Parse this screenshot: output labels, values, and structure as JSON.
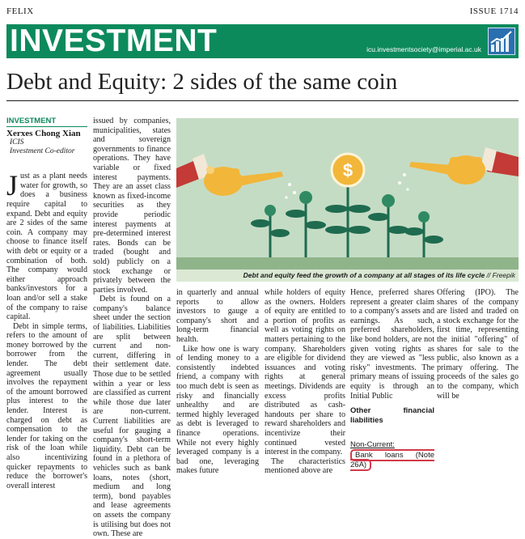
{
  "header": {
    "publication": "FELIX",
    "issue": "ISSUE 1714"
  },
  "banner": {
    "section": "INVESTMENT",
    "email": "icu.investmentsociety@imperial.ac.uk",
    "logo_icon": "chart-growth-icon"
  },
  "article": {
    "title": "Debt and Equity: 2 sides of the same coin",
    "section_label": "INVESTMENT",
    "author": "Xerxes Chong Xian",
    "author_org": "ICIS",
    "author_role": "Investment Co-editor",
    "col1_dropcap": "J",
    "col1_p1": "ust as a plant needs water for growth, so does a business require capital to expand. Debt and equity are 2 sides of the same coin. A company may choose to finance itself with debt or equity or a combination of both. The company would either approach banks/investors for a loan and/or sell a stake of the company to raise capital.",
    "col1_p2": "Debt in simple terms, refers to the amount of money borrowed by the borrower from the lender. The debt agreement usually involves the repayment of the amount borrowed plus interest to the lender. Interest is charged on debt as compensation to the lender for taking on the risk of the loan while also incentivizing quicker repayments to reduce the borrower's overall interest",
    "col2_p1": "issued by companies, municipalities, states and sovereign governments to finance operations. They have variable or fixed interest payments. They are an asset class known as fixed-income securities as they provide periodic interest payments at pre-determined interest rates. Bonds can be traded (bought and sold) publicly on a stock exchange or privately between the parties involved.",
    "col2_p2": "Debt is found on a company's balance sheet under the section of liabilities. Liabilities are split between current and non-current, differing in their settlement date. Those due to be settled within a year or less are classified as current while those due later are non-current. Current liabilities are useful for gauging a company's short-term liquidity. Debt can be found in a plethora of vehicles such as bank loans, notes (short, medium and long term), bond payables and lease agreements on assets the company is utilising but does not own. These are",
    "col3_p1": "in quarterly and annual reports to allow investors to gauge a company's short and long-term financial health.",
    "col3_p2": "Like how one is wary of lending money to a consistently indebted friend, a company with too much debt is seen as risky and financially unhealthy and are termed highly leveraged as debt is leveraged to finance operations. While not every highly leveraged company is a bad one, leveraging makes future",
    "col4_p1": "while holders of equity as the owners. Holders of equity are entitled to a portion of profits as well as voting rights on matters pertaining to the company. Shareholders are eligible for dividend issuances and voting rights at general meetings. Dividends are excess profits distributed as cash-handouts per share to reward shareholders and incentivize their continued vested interest in the company.",
    "col4_p2": "The characteristics mentioned above are",
    "col5_p1": "Hence, preferred shares represent a greater claim to a company's assets and earnings. As such, preferred shareholders, like bond holders, are not given voting rights as they are viewed as \"less risky\" investments. The primary means of issuing equity is through an Initial Public",
    "col5_subhead": "Other financial liabilities",
    "col5_noncurrent": "Non-Current:",
    "col5_bank": "Bank loans (Note 26A)",
    "col6_p1": "Offering (IPO). The shares of the company are listed and traded on a stock exchange for the first time, representing the initial \"offering\" of shares for sale to the public, also known as a primary offering. The proceeds of the sales go to the company, which will be"
  },
  "figure": {
    "caption": "Debt and equity feed the growth of a company at all stages of its life cycle",
    "credit": "// Freepik",
    "coin_symbol": "$",
    "colors": {
      "background": "#c5dcc4",
      "plant": "#1f6b4f",
      "can": "#f2b63a",
      "sleeve": "#c33a36"
    }
  },
  "colors": {
    "accent": "#0d8a5c",
    "highlight": "#d23a4b"
  }
}
